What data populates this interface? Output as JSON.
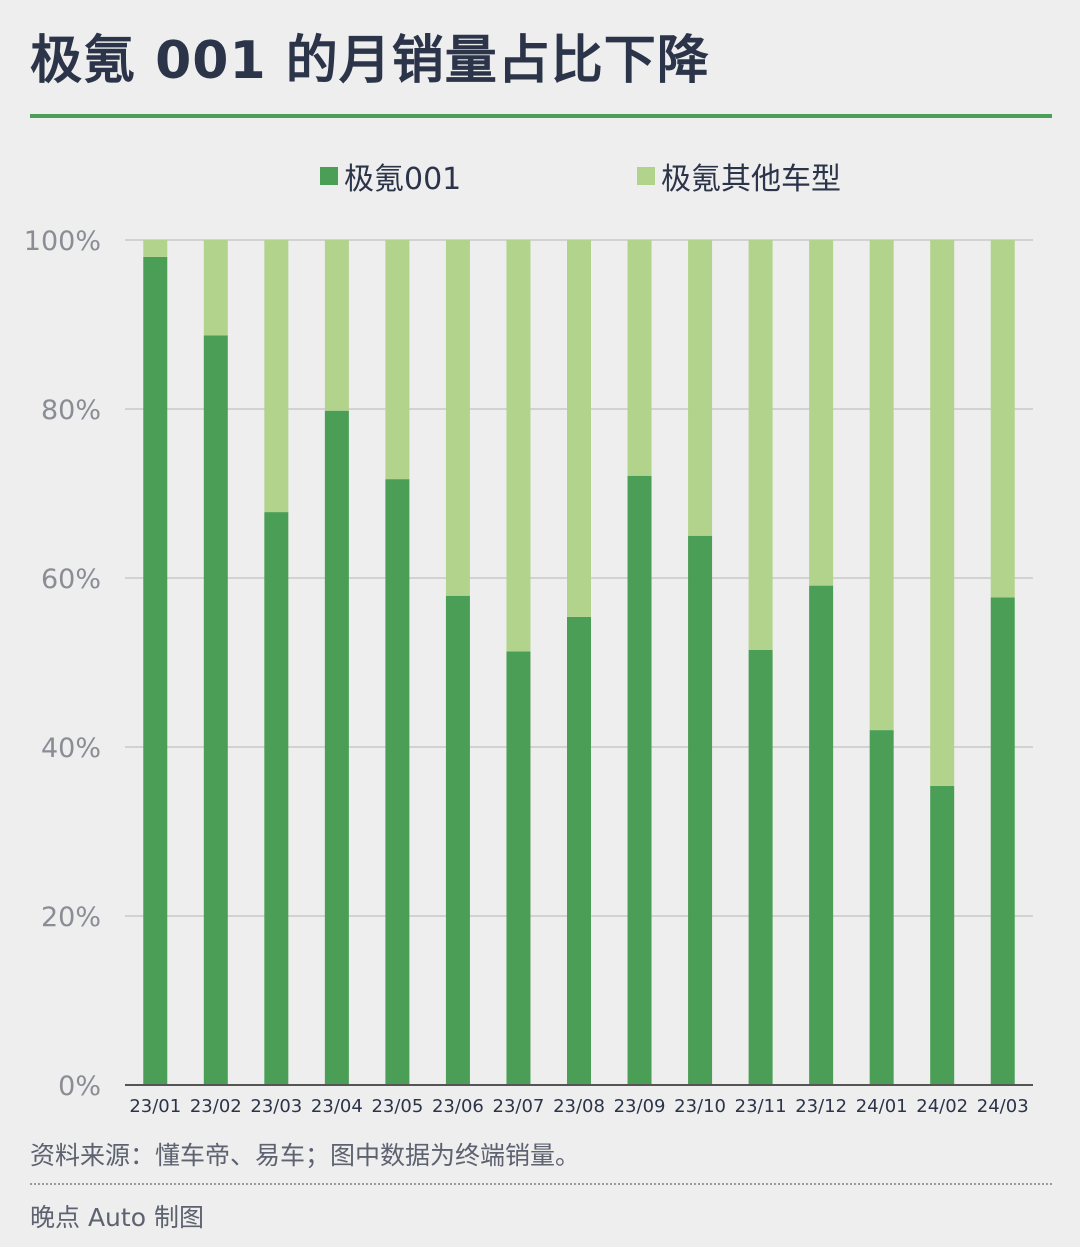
{
  "title": "极氪 001 的月销量占比下降",
  "source": "资料来源：懂车帝、易车；图中数据为终端销量。",
  "credit": "晚点 Auto 制图",
  "colors": {
    "accent": "#4b9e56",
    "series_001": "#4b9e56",
    "series_other": "#b2d38c",
    "grid": "#c8c8c8",
    "axis": "#555555"
  },
  "chart_data": {
    "type": "bar",
    "stacked": true,
    "percent": true,
    "categories": [
      "23/01",
      "23/02",
      "23/03",
      "23/04",
      "23/05",
      "23/06",
      "23/07",
      "23/08",
      "23/09",
      "23/10",
      "23/11",
      "23/12",
      "24/01",
      "24/02",
      "24/03"
    ],
    "series": [
      {
        "name": "极氪001",
        "values": [
          98,
          88.7,
          67.8,
          79.8,
          71.7,
          57.9,
          51.3,
          55.4,
          72.1,
          65,
          51.5,
          59.1,
          42,
          35.4,
          57.7
        ]
      },
      {
        "name": "极氪其他车型",
        "values": [
          2,
          11.3,
          32.2,
          20.2,
          28.3,
          42.1,
          48.7,
          44.6,
          27.9,
          35,
          48.5,
          40.9,
          58,
          64.6,
          42.3
        ]
      }
    ],
    "ylim": [
      0,
      100
    ],
    "yticks": [
      "0%",
      "20%",
      "40%",
      "60%",
      "80%",
      "100%"
    ],
    "grid": true,
    "legend_position": "top-center"
  }
}
